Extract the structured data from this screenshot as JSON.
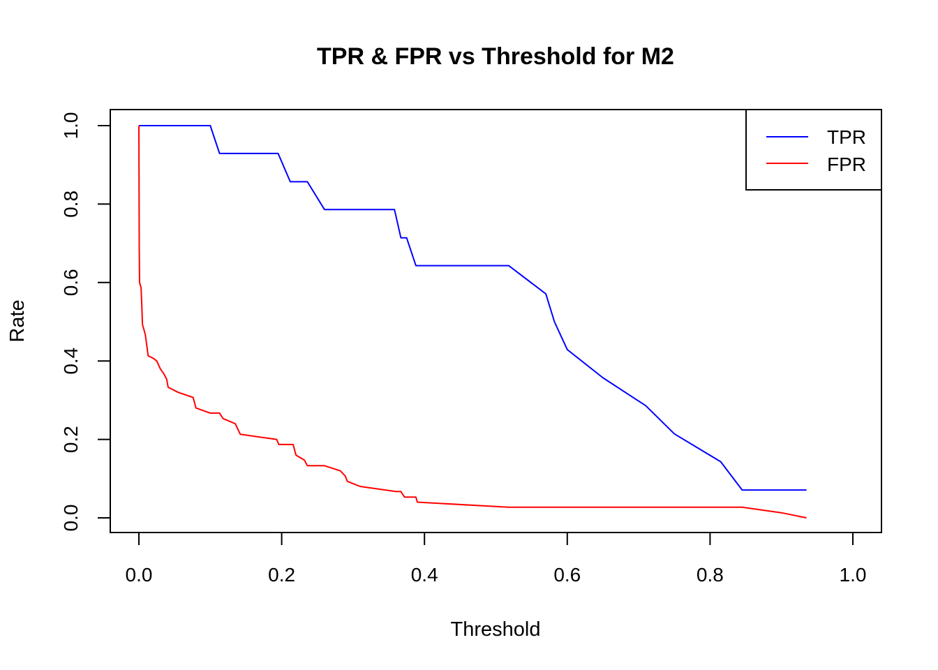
{
  "chart_data": {
    "type": "line",
    "title": "TPR & FPR vs Threshold for M2",
    "xlabel": "Threshold",
    "ylabel": "Rate",
    "xlim": [
      0,
      1
    ],
    "ylim": [
      0,
      1
    ],
    "x_ticks": [
      "0.0",
      "0.2",
      "0.4",
      "0.6",
      "0.8",
      "1.0"
    ],
    "y_ticks": [
      "0.0",
      "0.2",
      "0.4",
      "0.6",
      "0.8",
      "1.0"
    ],
    "grid": false,
    "legend_position": "top-right",
    "series": [
      {
        "name": "TPR",
        "color": "#0000ff",
        "points": [
          [
            0.0,
            1.0
          ],
          [
            0.1,
            1.0
          ],
          [
            0.113,
            0.929
          ],
          [
            0.195,
            0.929
          ],
          [
            0.212,
            0.857
          ],
          [
            0.236,
            0.857
          ],
          [
            0.26,
            0.786
          ],
          [
            0.358,
            0.786
          ],
          [
            0.367,
            0.714
          ],
          [
            0.375,
            0.714
          ],
          [
            0.388,
            0.643
          ],
          [
            0.518,
            0.643
          ],
          [
            0.57,
            0.571
          ],
          [
            0.582,
            0.5
          ],
          [
            0.6,
            0.429
          ],
          [
            0.65,
            0.357
          ],
          [
            0.71,
            0.286
          ],
          [
            0.75,
            0.214
          ],
          [
            0.815,
            0.143
          ],
          [
            0.845,
            0.071
          ],
          [
            0.935,
            0.071
          ]
        ]
      },
      {
        "name": "FPR",
        "color": "#ff0000",
        "points": [
          [
            0.0,
            1.0
          ],
          [
            0.0005,
            0.69
          ],
          [
            0.001,
            0.6
          ],
          [
            0.003,
            0.587
          ],
          [
            0.004,
            0.547
          ],
          [
            0.005,
            0.493
          ],
          [
            0.007,
            0.48
          ],
          [
            0.009,
            0.467
          ],
          [
            0.011,
            0.44
          ],
          [
            0.013,
            0.413
          ],
          [
            0.02,
            0.407
          ],
          [
            0.025,
            0.4
          ],
          [
            0.03,
            0.38
          ],
          [
            0.035,
            0.367
          ],
          [
            0.039,
            0.353
          ],
          [
            0.041,
            0.333
          ],
          [
            0.055,
            0.32
          ],
          [
            0.076,
            0.307
          ],
          [
            0.08,
            0.28
          ],
          [
            0.1,
            0.267
          ],
          [
            0.113,
            0.267
          ],
          [
            0.118,
            0.253
          ],
          [
            0.135,
            0.24
          ],
          [
            0.142,
            0.213
          ],
          [
            0.193,
            0.2
          ],
          [
            0.196,
            0.187
          ],
          [
            0.216,
            0.187
          ],
          [
            0.22,
            0.16
          ],
          [
            0.232,
            0.147
          ],
          [
            0.236,
            0.133
          ],
          [
            0.26,
            0.133
          ],
          [
            0.282,
            0.12
          ],
          [
            0.289,
            0.107
          ],
          [
            0.292,
            0.093
          ],
          [
            0.31,
            0.08
          ],
          [
            0.36,
            0.067
          ],
          [
            0.367,
            0.067
          ],
          [
            0.372,
            0.053
          ],
          [
            0.388,
            0.053
          ],
          [
            0.39,
            0.04
          ],
          [
            0.518,
            0.027
          ],
          [
            0.845,
            0.027
          ],
          [
            0.9,
            0.013
          ],
          [
            0.935,
            0.0
          ]
        ]
      }
    ]
  }
}
